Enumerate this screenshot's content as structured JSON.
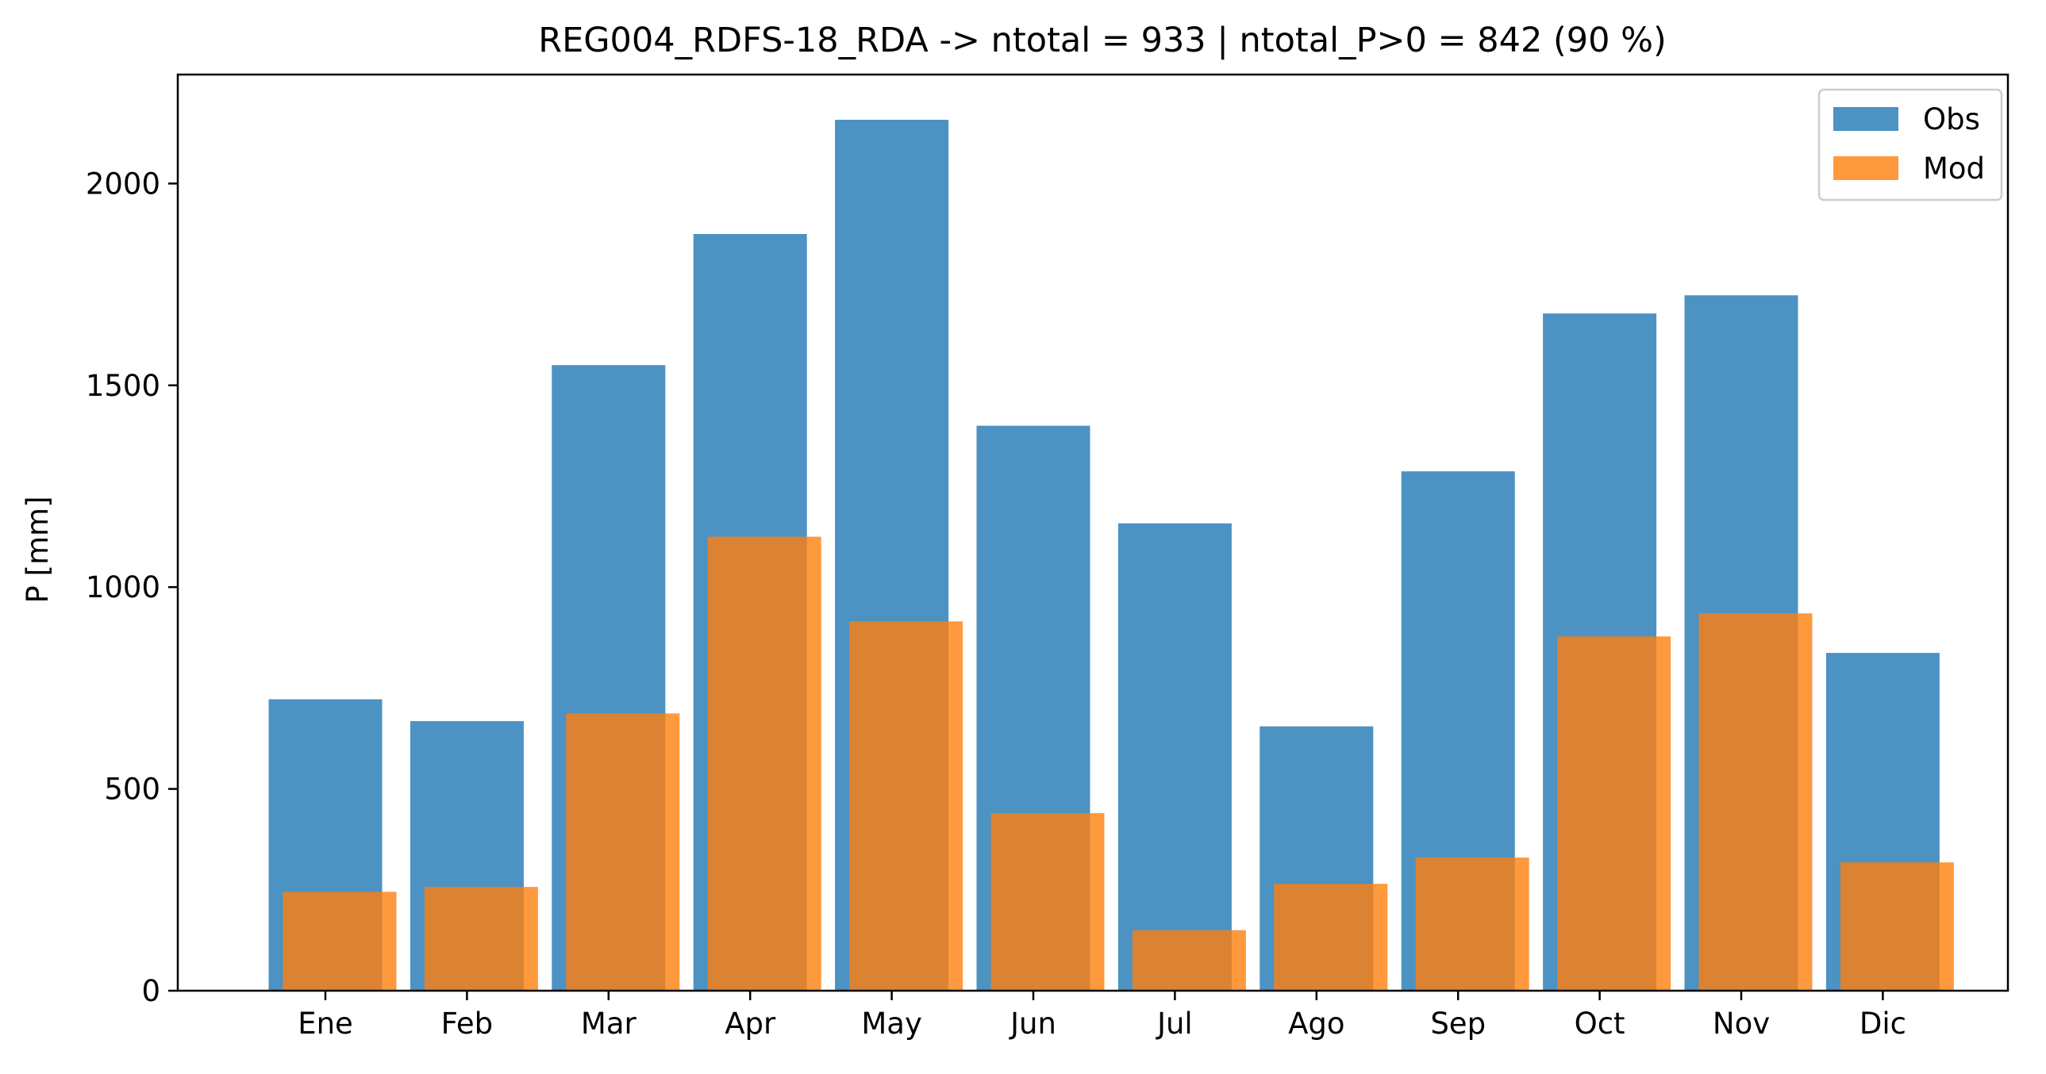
{
  "chart_data": {
    "type": "bar",
    "title": "REG004_RDFS-18_RDA -> ntotal = 933 | ntotal_P>0 = 842 (90 %)",
    "xlabel": "",
    "ylabel": "P [mm]",
    "categories": [
      "Ene",
      "Feb",
      "Mar",
      "Apr",
      "May",
      "Jun",
      "Jul",
      "Ago",
      "Sep",
      "Oct",
      "Nov",
      "Dic"
    ],
    "series": [
      {
        "name": "Obs",
        "color": "#1f77b4",
        "opacity": 0.8,
        "values": [
          722,
          668,
          1550,
          1875,
          2158,
          1400,
          1158,
          655,
          1287,
          1678,
          1723,
          837
        ]
      },
      {
        "name": "Mod",
        "color": "#ff7f0e",
        "opacity": 0.8,
        "values": [
          245,
          257,
          687,
          1125,
          915,
          440,
          150,
          265,
          330,
          878,
          935,
          318
        ]
      }
    ],
    "ylim": [
      0,
      2270
    ],
    "yticks": [
      0,
      500,
      1000,
      1500,
      2000
    ],
    "grid": false,
    "legend_position": "top-right"
  }
}
